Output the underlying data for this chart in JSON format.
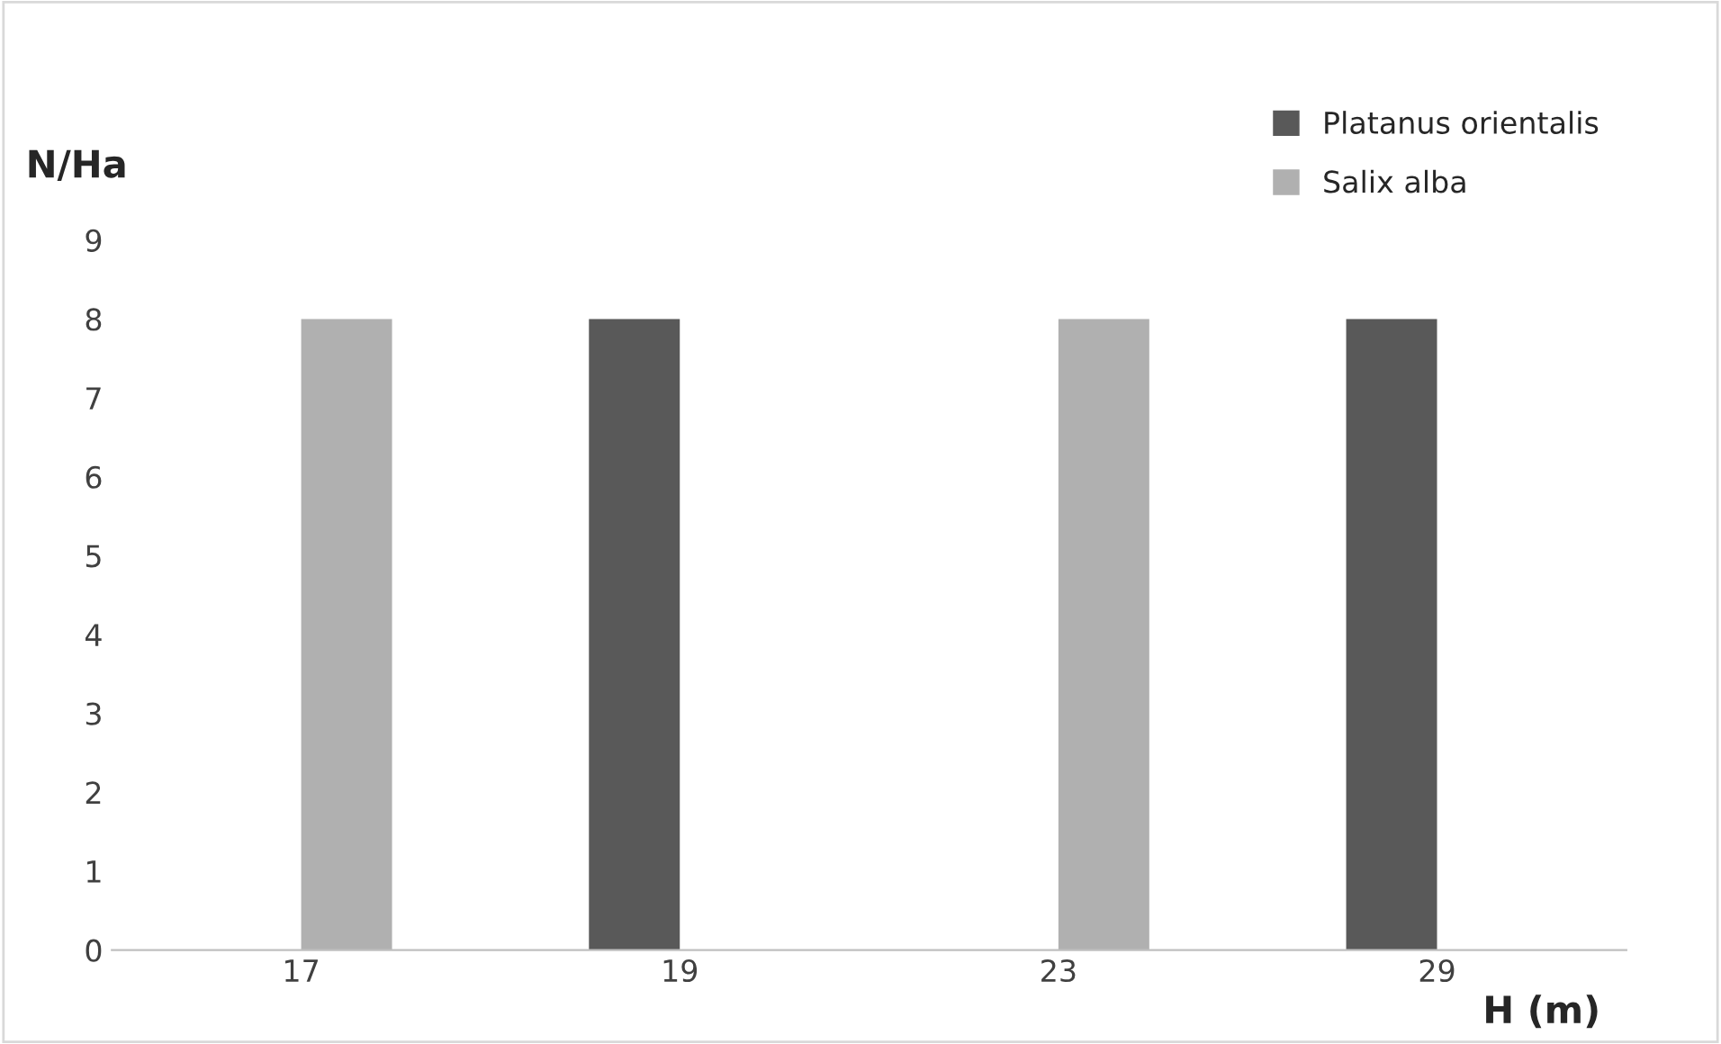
{
  "chart_data": {
    "type": "bar",
    "xlabel": "H (m)",
    "ylabel": "N/Ha",
    "categories": [
      "17",
      "19",
      "23",
      "29"
    ],
    "series": [
      {
        "name": "Platanus orientalis",
        "color": "#595959",
        "values": [
          null,
          8,
          null,
          8
        ]
      },
      {
        "name": "Salix alba",
        "color": "#b0b0b0",
        "values": [
          8,
          null,
          8,
          null
        ]
      }
    ],
    "ylim": [
      0,
      9
    ],
    "yticks": [
      0,
      1,
      2,
      3,
      4,
      5,
      6,
      7,
      8,
      9
    ],
    "grid": false,
    "legend": "top right"
  }
}
